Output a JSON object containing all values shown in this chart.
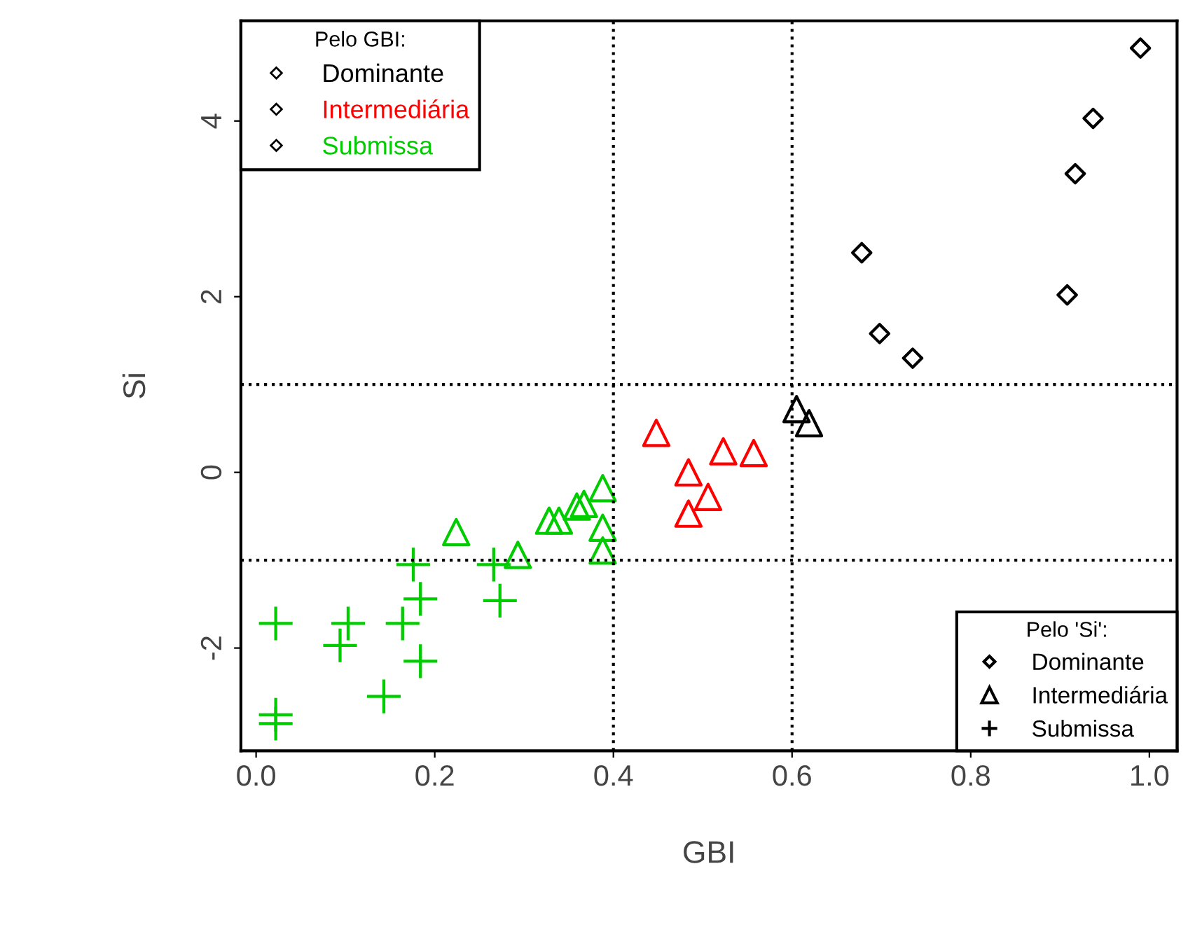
{
  "chart_data": {
    "type": "scatter",
    "xlabel": "GBI",
    "ylabel": "Si",
    "xlim": [
      -0.017,
      1.031
    ],
    "ylim": [
      -3.17,
      5.14
    ],
    "xticks": [
      {
        "value": 0,
        "label": "0.0"
      },
      0.2,
      0.4,
      0.6,
      0.8,
      {
        "value": 1,
        "label": "1.0"
      }
    ],
    "yticks": [
      -2,
      0,
      2,
      4
    ],
    "grid": false,
    "annotations": [
      "Pelo GBI:",
      "Dominante",
      "Intermediária",
      "Submissa",
      "Pelo 'Si':",
      "Dominante",
      "Intermediária",
      "Submissa"
    ],
    "ref_lines": [
      {
        "axis": "x",
        "value": 0.4,
        "line_style": "dotted",
        "color": "#000000"
      },
      {
        "axis": "x",
        "value": 0.6,
        "line_style": "dotted",
        "color": "#000000"
      },
      {
        "axis": "y",
        "value": 1,
        "line_style": "dotted",
        "color": "#000000"
      },
      {
        "axis": "y",
        "value": -1,
        "line_style": "dotted",
        "color": "#000000"
      }
    ],
    "series": [
      {
        "color": "#000000",
        "marker": "diamond",
        "x": [
          0.99,
          0.937,
          0.917,
          0.678,
          0.908,
          0.698,
          0.735
        ],
        "values": [
          4.83,
          4.03,
          3.4,
          2.5,
          2.02,
          1.58,
          1.3
        ]
      },
      {
        "color": "#000000",
        "marker": "triangle",
        "x": [
          0.605,
          0.619
        ],
        "values": [
          0.72,
          0.56
        ]
      },
      {
        "color": "#ff0000",
        "marker": "triangle",
        "x": [
          0.448,
          0.523,
          0.557,
          0.484,
          0.506,
          0.484
        ],
        "values": [
          0.45,
          0.24,
          0.22,
          0.0,
          -0.28,
          -0.47
        ]
      },
      {
        "color": "#00cc00",
        "marker": "triangle",
        "x": [
          0.224,
          0.293,
          0.388,
          0.328,
          0.339,
          0.359,
          0.367,
          0.388,
          0.388
        ],
        "values": [
          -0.68,
          -0.94,
          -0.18,
          -0.55,
          -0.55,
          -0.39,
          -0.36,
          -0.63,
          -0.89
        ]
      },
      {
        "color": "#00cc00",
        "marker": "cross",
        "x": [
          0.022,
          0.103,
          0.094,
          0.164,
          0.184,
          0.176,
          0.266,
          0.273,
          0.184,
          0.143,
          0.022,
          0.022
        ],
        "values": [
          -1.72,
          -1.72,
          -1.97,
          -1.72,
          -1.44,
          -1.05,
          -1.05,
          -1.46,
          -2.15,
          -2.55,
          -2.76,
          -2.86
        ]
      }
    ]
  }
}
